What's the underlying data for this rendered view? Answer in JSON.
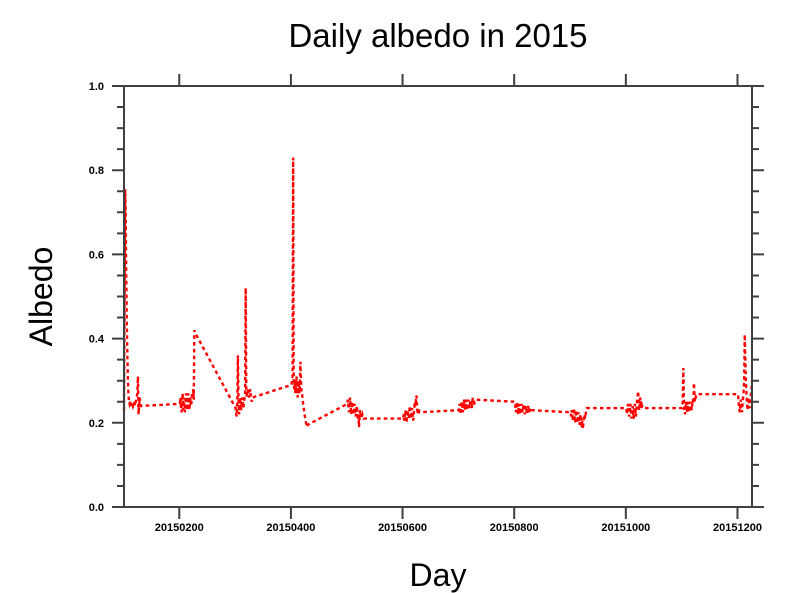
{
  "chart_data": {
    "type": "line",
    "title": "Daily albedo in 2015",
    "xlabel": "Day",
    "ylabel": "Albedo",
    "legend": "none",
    "grid": "off",
    "line_color": "#ff0000",
    "line_style": "dashed",
    "axis_color": "#404040",
    "xlim": [
      20150101,
      20151226
    ],
    "ylim": [
      0.0,
      1.0
    ],
    "x_ticks": [
      20150200,
      20150400,
      20150600,
      20150800,
      20151000,
      20151200
    ],
    "x_tick_labels": [
      "20150200",
      "20150400",
      "20150600",
      "20150800",
      "20151000",
      "20151200"
    ],
    "y_ticks": [
      0.0,
      0.2,
      0.4,
      0.6,
      0.8,
      1.0
    ],
    "y_tick_labels": [
      "0.0",
      "0.2",
      "0.4",
      "0.6",
      "0.8",
      "1.0"
    ],
    "y_minor_tick_step": 0.05,
    "x_encoding": "numeric date YYYYMMDD",
    "series": [
      {
        "name": "daily albedo",
        "year": 2015,
        "months": [
          {
            "month": 1,
            "values": [
              0.23,
              0.5,
              0.755,
              0.7,
              0.55,
              0.44,
              0.36,
              0.3,
              0.265,
              0.25,
              0.245,
              0.25,
              0.24,
              0.245,
              0.25,
              0.245,
              0.24,
              0.245,
              0.25,
              0.245,
              0.24,
              0.25,
              0.255,
              0.26,
              0.275,
              0.31,
              0.22,
              0.24,
              0.26,
              0.25,
              0.24
            ]
          },
          {
            "month": 2,
            "values": [
              0.245,
              0.26,
              0.24,
              0.225,
              0.245,
              0.27,
              0.23,
              0.26,
              0.24,
              0.225,
              0.25,
              0.27,
              0.245,
              0.23,
              0.25,
              0.27,
              0.255,
              0.23,
              0.245,
              0.26,
              0.24,
              0.25,
              0.27,
              0.26,
              0.28,
              0.255,
              0.42,
              0.415
            ]
          },
          {
            "month": 3,
            "values": [
              0.235,
              0.22,
              0.215,
              0.25,
              0.36,
              0.26,
              0.22,
              0.235,
              0.26,
              0.245,
              0.23,
              0.25,
              0.26,
              0.245,
              0.235,
              0.25,
              0.26,
              0.27,
              0.52,
              0.28,
              0.26,
              0.275,
              0.28,
              0.27,
              0.26,
              0.27,
              0.28,
              0.265,
              0.255,
              0.25,
              0.26
            ]
          },
          {
            "month": 4,
            "values": [
              0.29,
              0.3,
              0.31,
              0.83,
              0.3,
              0.28,
              0.3,
              0.27,
              0.29,
              0.31,
              0.28,
              0.26,
              0.28,
              0.3,
              0.27,
              0.29,
              0.345,
              0.3,
              0.27,
              0.27,
              0.255,
              0.245,
              0.235,
              0.225,
              0.215,
              0.21,
              0.2,
              0.195,
              0.19,
              0.195
            ]
          },
          {
            "month": 5,
            "values": [
              0.245,
              0.255,
              0.24,
              0.225,
              0.25,
              0.26,
              0.24,
              0.22,
              0.235,
              0.25,
              0.235,
              0.22,
              0.23,
              0.245,
              0.23,
              0.215,
              0.225,
              0.24,
              0.225,
              0.21,
              0.22,
              0.19,
              0.215,
              0.23,
              0.22,
              0.21,
              0.215,
              0.22,
              0.215,
              0.21,
              0.21
            ]
          },
          {
            "month": 6,
            "values": [
              0.21,
              0.22,
              0.205,
              0.215,
              0.23,
              0.22,
              0.2,
              0.215,
              0.23,
              0.22,
              0.21,
              0.225,
              0.24,
              0.225,
              0.21,
              0.22,
              0.235,
              0.22,
              0.205,
              0.22,
              0.235,
              0.25,
              0.24,
              0.255,
              0.265,
              0.24,
              0.22,
              0.23,
              0.235,
              0.225
            ]
          },
          {
            "month": 7,
            "values": [
              0.23,
              0.245,
              0.235,
              0.22,
              0.235,
              0.25,
              0.24,
              0.225,
              0.24,
              0.255,
              0.245,
              0.23,
              0.245,
              0.255,
              0.24,
              0.23,
              0.245,
              0.255,
              0.245,
              0.235,
              0.25,
              0.255,
              0.245,
              0.235,
              0.25,
              0.26,
              0.25,
              0.24,
              0.25,
              0.255,
              0.255
            ]
          },
          {
            "month": 8,
            "values": [
              0.25,
              0.24,
              0.225,
              0.24,
              0.25,
              0.235,
              0.22,
              0.235,
              0.245,
              0.23,
              0.22,
              0.23,
              0.245,
              0.235,
              0.225,
              0.235,
              0.245,
              0.23,
              0.22,
              0.23,
              0.24,
              0.23,
              0.22,
              0.23,
              0.24,
              0.23,
              0.225,
              0.23,
              0.235,
              0.23,
              0.23
            ]
          },
          {
            "month": 9,
            "values": [
              0.225,
              0.215,
              0.23,
              0.22,
              0.205,
              0.22,
              0.235,
              0.22,
              0.2,
              0.215,
              0.23,
              0.215,
              0.2,
              0.21,
              0.225,
              0.21,
              0.195,
              0.21,
              0.22,
              0.205,
              0.19,
              0.205,
              0.185,
              0.2,
              0.215,
              0.22,
              0.21,
              0.22,
              0.23,
              0.235
            ]
          },
          {
            "month": 10,
            "values": [
              0.235,
              0.22,
              0.235,
              0.245,
              0.23,
              0.215,
              0.23,
              0.245,
              0.23,
              0.21,
              0.225,
              0.24,
              0.225,
              0.21,
              0.225,
              0.245,
              0.23,
              0.215,
              0.23,
              0.25,
              0.26,
              0.275,
              0.25,
              0.23,
              0.245,
              0.26,
              0.245,
              0.235,
              0.24,
              0.235,
              0.235
            ]
          },
          {
            "month": 11,
            "values": [
              0.235,
              0.25,
              0.33,
              0.25,
              0.23,
              0.22,
              0.235,
              0.25,
              0.24,
              0.225,
              0.24,
              0.25,
              0.235,
              0.225,
              0.24,
              0.25,
              0.24,
              0.23,
              0.245,
              0.255,
              0.245,
              0.295,
              0.26,
              0.25,
              0.26,
              0.265,
              0.265,
              0.268,
              0.268,
              0.268
            ]
          },
          {
            "month": 12,
            "values": [
              0.268,
              0.25,
              0.235,
              0.225,
              0.24,
              0.255,
              0.24,
              0.225,
              0.245,
              0.26,
              0.275,
              0.3,
              0.41,
              0.35,
              0.3,
              0.27,
              0.245,
              0.23,
              0.245,
              0.26,
              0.245,
              0.235,
              0.25,
              0.265,
              0.28,
              0.3
            ]
          }
        ]
      }
    ]
  }
}
